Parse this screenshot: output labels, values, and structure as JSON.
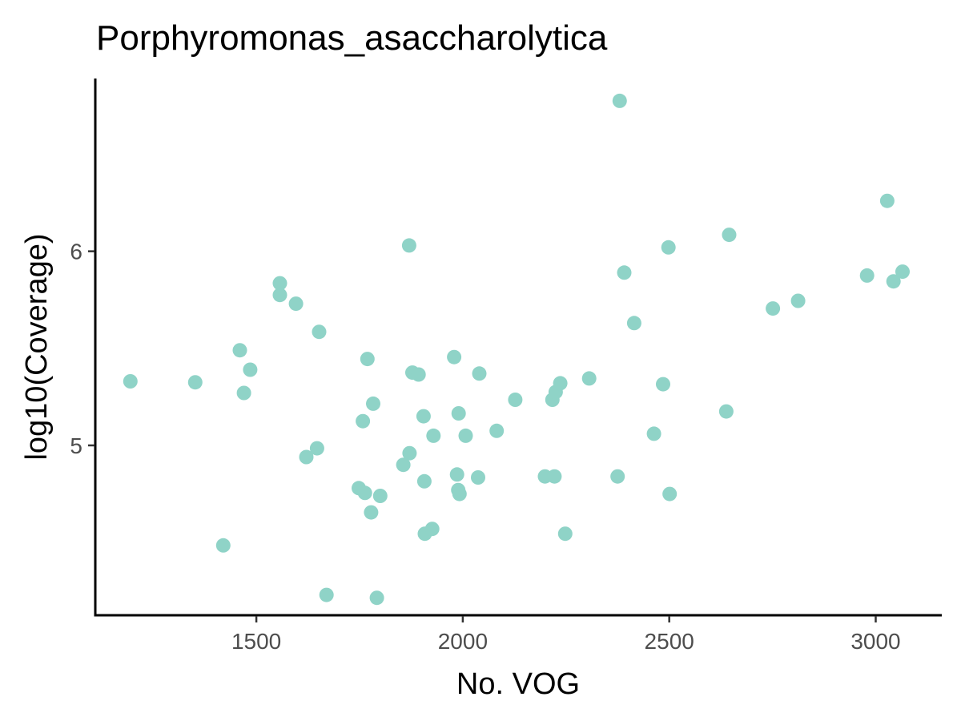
{
  "chart_data": {
    "type": "scatter",
    "title": "Porphyromonas_asaccharolytica",
    "xlabel": "No. VOG",
    "ylabel": "log10(Coverage)",
    "xlim": [
      1110,
      3160
    ],
    "ylim": [
      4.125,
      6.89
    ],
    "xticks": [
      1500,
      2000,
      2500,
      3000
    ],
    "yticks": [
      5,
      6
    ],
    "grid": false,
    "point_color": "#8fd3c7",
    "x": [
      1195,
      1352,
      1420,
      1460,
      1470,
      1485,
      1557,
      1557,
      1596,
      1621,
      1647,
      1652,
      1670,
      1748,
      1758,
      1763,
      1769,
      1778,
      1783,
      1792,
      1800,
      1856,
      1870,
      1871,
      1878,
      1893,
      1905,
      1907,
      1908,
      1926,
      1929,
      1979,
      1986,
      1989,
      1990,
      1992,
      2007,
      2037,
      2040,
      2082,
      2127,
      2199,
      2217,
      2222,
      2225,
      2236,
      2248,
      2306,
      2375,
      2380,
      2391,
      2415,
      2463,
      2485,
      2498,
      2501,
      2638,
      2645,
      2751,
      2812,
      2979,
      3028,
      3043,
      3065
    ],
    "y": [
      5.33,
      5.325,
      4.485,
      5.49,
      5.27,
      5.39,
      5.835,
      5.775,
      5.73,
      4.94,
      4.985,
      5.585,
      4.23,
      4.78,
      5.125,
      4.755,
      5.445,
      4.655,
      5.215,
      4.215,
      4.74,
      4.9,
      6.03,
      4.96,
      5.375,
      5.365,
      5.15,
      4.815,
      4.545,
      4.57,
      5.05,
      5.455,
      4.85,
      4.77,
      5.165,
      4.75,
      5.05,
      4.835,
      5.37,
      5.075,
      5.235,
      4.84,
      5.235,
      4.84,
      5.275,
      5.32,
      4.545,
      5.345,
      4.84,
      6.775,
      5.89,
      5.63,
      5.06,
      5.315,
      6.02,
      4.75,
      5.175,
      6.085,
      5.705,
      5.745,
      5.875,
      6.26,
      5.845,
      5.895
    ]
  }
}
